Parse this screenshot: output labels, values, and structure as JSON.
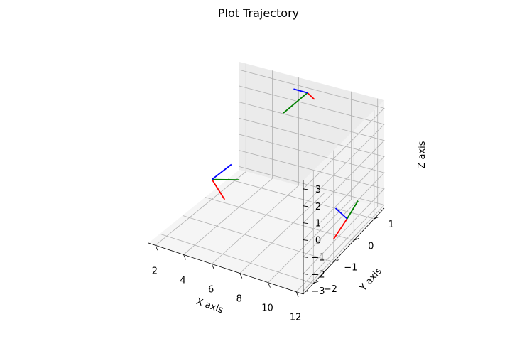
{
  "chart_data": {
    "type": "3d-line",
    "title": "Plot Trajectory",
    "xlabel": "X axis",
    "ylabel": "Y axis",
    "zlabel": "Z axis",
    "xlim": [
      1.5,
      12.5
    ],
    "ylim": [
      -2.5,
      1.5
    ],
    "zlim": [
      -3.2,
      3.5
    ],
    "xticks": [
      "2",
      "4",
      "6",
      "8",
      "10",
      "12"
    ],
    "yticks": [
      "−2",
      "−1",
      "0",
      "1"
    ],
    "zticks": [
      "−3",
      "−2",
      "−1",
      "0",
      "1",
      "2",
      "3"
    ],
    "grid": true,
    "frames": [
      {
        "origin": [
          2,
          0,
          -2
        ],
        "x_end": [
          2.6,
          0.2,
          -3.3
        ],
        "y_end": [
          3.2,
          0.5,
          -2.3
        ],
        "z_end": [
          2.6,
          0.5,
          -1.5
        ],
        "colors": [
          "#ff0000",
          "#008000",
          "#0000ff"
        ]
      },
      {
        "origin": [
          12,
          0,
          -2
        ],
        "x_end": [
          11.9,
          -0.6,
          -2.5
        ],
        "y_end": [
          11.9,
          0.6,
          -1.7
        ],
        "z_end": [
          11.3,
          -0.1,
          -1.4
        ],
        "colors": [
          "#ff0000",
          "#008000",
          "#0000ff"
        ]
      },
      {
        "origin": [
          7,
          1.3,
          3
        ],
        "x_end": [
          7.2,
          1.5,
          2.4
        ],
        "y_end": [
          6.0,
          0.8,
          2.1
        ],
        "z_end": [
          6.6,
          0.9,
          3.6
        ],
        "colors": [
          "#ff0000",
          "#008000",
          "#0000ff"
        ]
      }
    ]
  }
}
